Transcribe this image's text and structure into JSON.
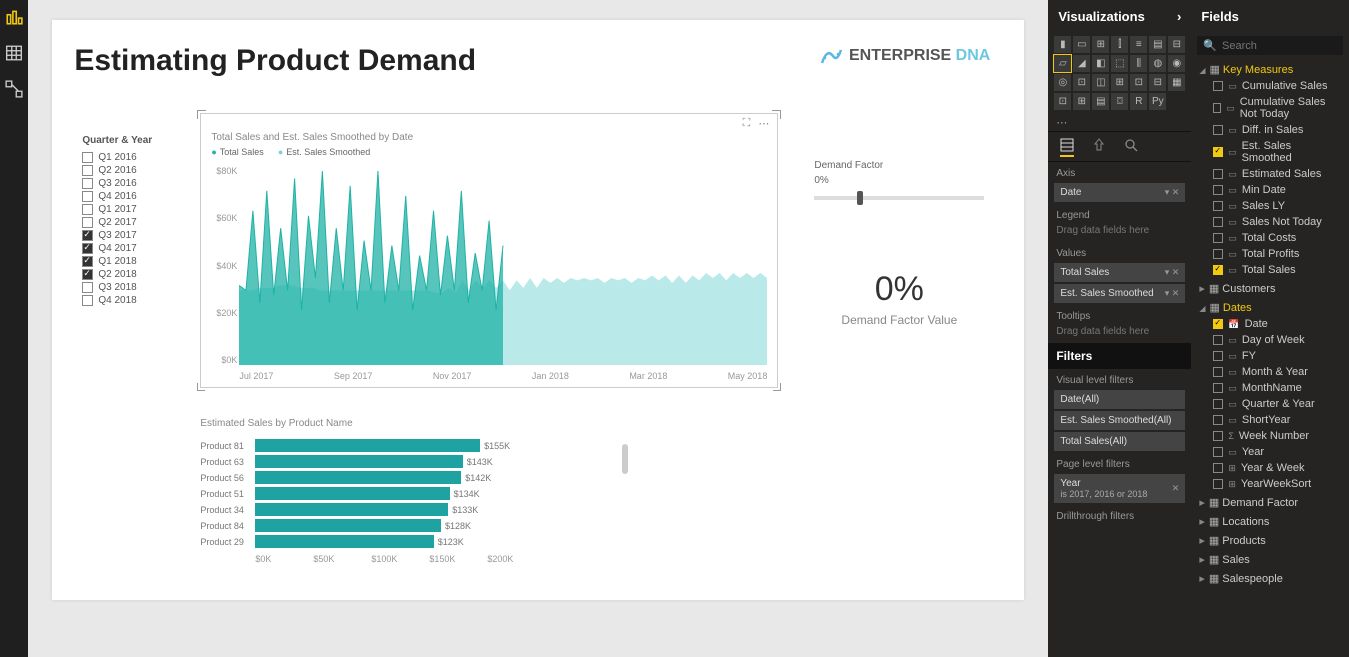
{
  "report": {
    "title": "Estimating Product Demand",
    "logo_part1": "ENTERPRISE",
    "logo_part2": " DNA"
  },
  "slicer": {
    "header": "Quarter & Year",
    "items": [
      {
        "label": "Q1 2016",
        "checked": false
      },
      {
        "label": "Q2 2016",
        "checked": false
      },
      {
        "label": "Q3 2016",
        "checked": false
      },
      {
        "label": "Q4 2016",
        "checked": false
      },
      {
        "label": "Q1 2017",
        "checked": false
      },
      {
        "label": "Q2 2017",
        "checked": false
      },
      {
        "label": "Q3 2017",
        "checked": true
      },
      {
        "label": "Q4 2017",
        "checked": true
      },
      {
        "label": "Q1 2018",
        "checked": true
      },
      {
        "label": "Q2 2018",
        "checked": true
      },
      {
        "label": "Q3 2018",
        "checked": false
      },
      {
        "label": "Q4 2018",
        "checked": false
      }
    ]
  },
  "chart1": {
    "type": "area-line",
    "title": "Total Sales and Est. Sales Smoothed by Date",
    "series1_name": "Total Sales",
    "series2_name": "Est. Sales Smoothed",
    "series1_color": "#1fb2a6",
    "series2_color": "#8bdada",
    "y_ticks": [
      "$80K",
      "$60K",
      "$40K",
      "$20K",
      "$0K"
    ],
    "x_ticks": [
      "Jul 2017",
      "Sep 2017",
      "Nov 2017",
      "Jan 2018",
      "Mar 2018",
      "May 2018"
    ],
    "ylim": [
      0,
      80
    ],
    "series1_values": [
      32,
      30,
      62,
      25,
      70,
      28,
      55,
      30,
      75,
      22,
      60,
      35,
      78,
      25,
      55,
      30,
      72,
      22,
      50,
      30,
      78,
      25,
      48,
      30,
      68,
      22,
      44,
      30,
      62,
      28,
      52,
      30,
      70,
      25,
      45,
      30,
      58,
      22,
      48
    ],
    "series2_values": [
      30,
      30,
      30,
      31,
      31,
      31,
      32,
      32,
      32,
      31,
      31,
      31,
      30,
      30,
      30,
      30,
      30,
      30,
      30,
      30,
      30,
      30,
      30,
      30,
      30,
      30,
      30,
      30,
      30,
      29,
      29,
      31,
      29,
      34,
      30,
      34,
      31,
      34,
      31,
      34,
      30,
      34,
      31,
      35,
      31,
      35,
      33,
      35,
      33,
      35,
      34,
      35,
      34,
      35,
      33,
      35,
      34,
      35,
      33,
      35,
      34,
      36,
      34,
      36,
      33,
      36,
      33,
      36,
      34,
      37,
      35,
      37,
      34,
      37,
      35,
      37,
      35,
      37,
      35
    ]
  },
  "demand": {
    "label": "Demand Factor",
    "value_text": "0%",
    "slider_pct": 25,
    "big": "0%",
    "sub": "Demand Factor Value"
  },
  "chart2": {
    "type": "hbar",
    "title": "Estimated Sales by Product Name",
    "color": "#1fa2a2",
    "max": 200,
    "rows": [
      {
        "name": "Product 81",
        "value": 155,
        "label": "$155K"
      },
      {
        "name": "Product 63",
        "value": 143,
        "label": "$143K"
      },
      {
        "name": "Product 56",
        "value": 142,
        "label": "$142K"
      },
      {
        "name": "Product 51",
        "value": 134,
        "label": "$134K"
      },
      {
        "name": "Product 34",
        "value": 133,
        "label": "$133K"
      },
      {
        "name": "Product 84",
        "value": 128,
        "label": "$128K"
      },
      {
        "name": "Product 29",
        "value": 123,
        "label": "$123K"
      }
    ],
    "x_ticks": [
      "$0K",
      "$50K",
      "$100K",
      "$150K",
      "$200K"
    ]
  },
  "viz_panel": {
    "header": "Visualizations",
    "sections": {
      "axis": "Axis",
      "legend": "Legend",
      "values": "Values",
      "tooltips": "Tooltips",
      "drop": "Drag data fields here",
      "filters": "Filters",
      "vlf": "Visual level filters",
      "plf": "Page level filters",
      "dtf": "Drillthrough filters"
    },
    "wells": {
      "axis": [
        {
          "label": "Date"
        }
      ],
      "values": [
        {
          "label": "Total Sales"
        },
        {
          "label": "Est. Sales Smoothed"
        }
      ]
    },
    "vfilters": [
      {
        "label": "Date(All)"
      },
      {
        "label": "Est. Sales Smoothed(All)"
      },
      {
        "label": "Total Sales(All)"
      }
    ],
    "pfilter": {
      "label": "Year",
      "detail": "is 2017, 2016 or 2018"
    }
  },
  "fields_panel": {
    "header": "Fields",
    "search_placeholder": "Search",
    "tables": [
      {
        "name": "Key Measures",
        "open": true,
        "fields": [
          {
            "name": "Cumulative Sales",
            "checked": false,
            "icon": "calc"
          },
          {
            "name": "Cumulative Sales Not Today",
            "checked": false,
            "icon": "calc"
          },
          {
            "name": "Diff. in Sales",
            "checked": false,
            "icon": "calc"
          },
          {
            "name": "Est. Sales Smoothed",
            "checked": true,
            "icon": "calc"
          },
          {
            "name": "Estimated Sales",
            "checked": false,
            "icon": "calc"
          },
          {
            "name": "Min Date",
            "checked": false,
            "icon": "calc"
          },
          {
            "name": "Sales LY",
            "checked": false,
            "icon": "calc"
          },
          {
            "name": "Sales Not Today",
            "checked": false,
            "icon": "calc"
          },
          {
            "name": "Total Costs",
            "checked": false,
            "icon": "calc"
          },
          {
            "name": "Total Profits",
            "checked": false,
            "icon": "calc"
          },
          {
            "name": "Total Sales",
            "checked": true,
            "icon": "calc"
          }
        ]
      },
      {
        "name": "Customers",
        "open": false
      },
      {
        "name": "Dates",
        "open": true,
        "highlight": true,
        "fields": [
          {
            "name": "Date",
            "checked": true,
            "icon": "cal"
          },
          {
            "name": "Day of Week",
            "checked": false
          },
          {
            "name": "FY",
            "checked": false
          },
          {
            "name": "Month & Year",
            "checked": false
          },
          {
            "name": "MonthName",
            "checked": false
          },
          {
            "name": "Quarter & Year",
            "checked": false
          },
          {
            "name": "ShortYear",
            "checked": false
          },
          {
            "name": "Week Number",
            "checked": false,
            "icon": "sum"
          },
          {
            "name": "Year",
            "checked": false
          },
          {
            "name": "Year & Week",
            "checked": false,
            "icon": "hier"
          },
          {
            "name": "YearWeekSort",
            "checked": false,
            "icon": "hier"
          }
        ]
      },
      {
        "name": "Demand Factor",
        "open": false
      },
      {
        "name": "Locations",
        "open": false
      },
      {
        "name": "Products",
        "open": false
      },
      {
        "name": "Sales",
        "open": false
      },
      {
        "name": "Salespeople",
        "open": false
      }
    ]
  }
}
